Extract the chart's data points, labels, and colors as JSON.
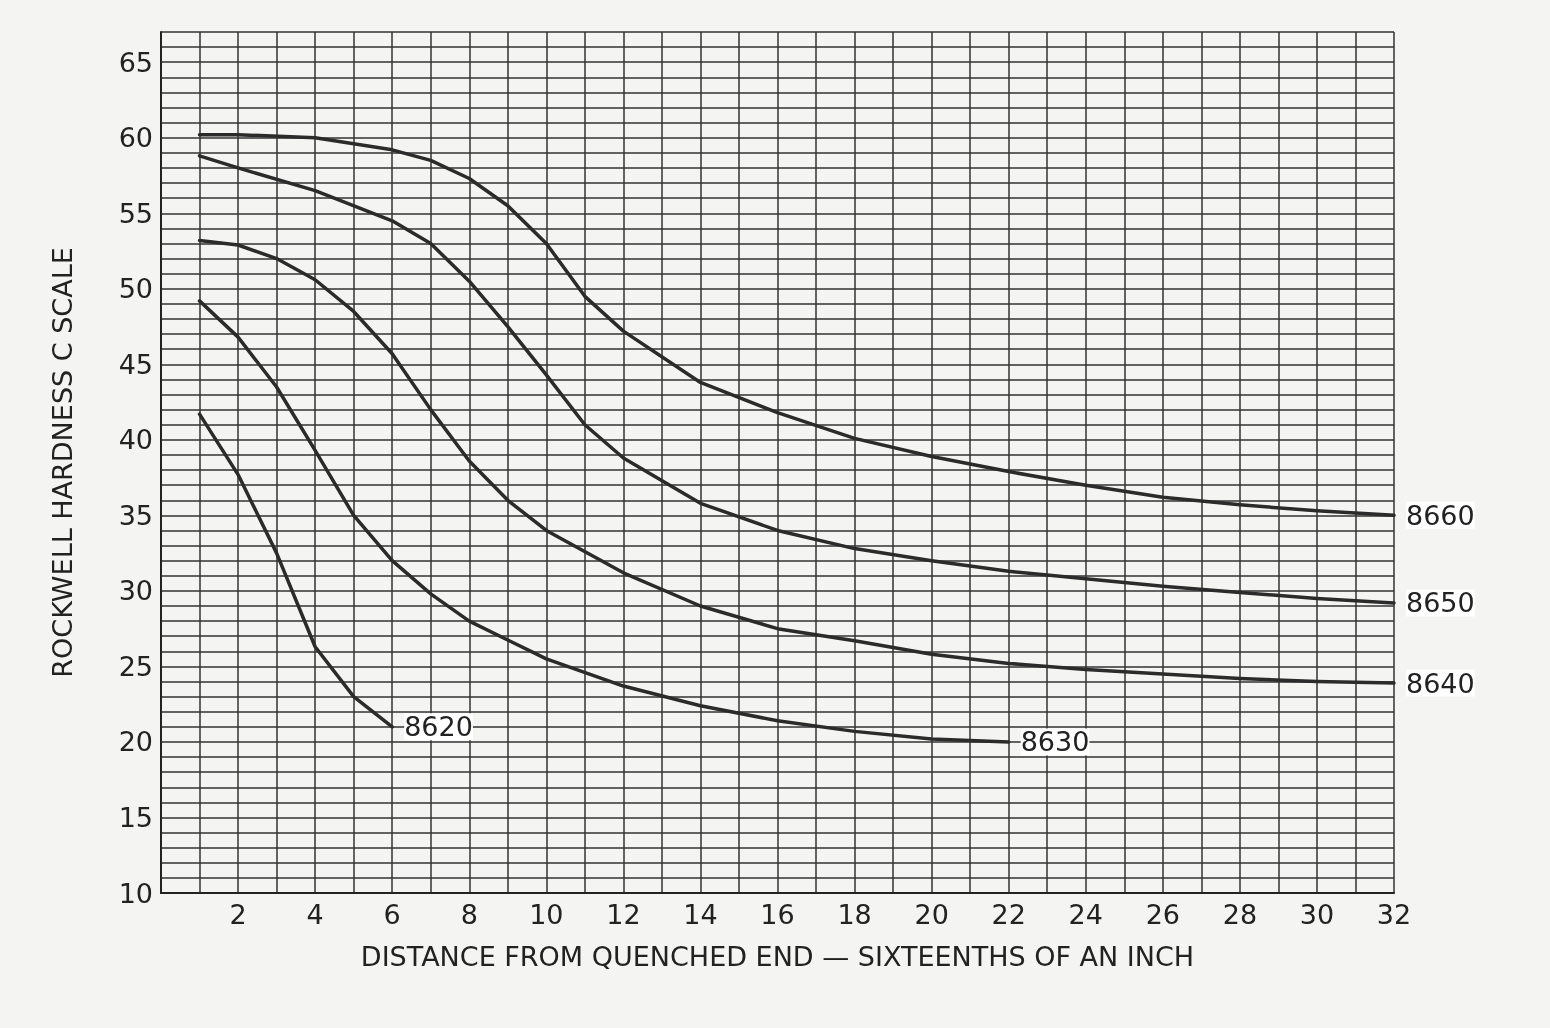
{
  "chart_data": {
    "type": "line",
    "xlabel": "DISTANCE FROM QUENCHED END — SIXTEENTHS OF AN INCH",
    "ylabel": "ROCKWELL HARDNESS C SCALE",
    "xlim": [
      0,
      32
    ],
    "ylim": [
      10,
      67
    ],
    "xticks": [
      {
        "value": 0,
        "label": null
      },
      {
        "value": 1,
        "label": null
      },
      2,
      {
        "value": 3,
        "label": null
      },
      4,
      {
        "value": 5,
        "label": null
      },
      6,
      {
        "value": 7,
        "label": null
      },
      8,
      {
        "value": 9,
        "label": null
      },
      10,
      {
        "value": 11,
        "label": null
      },
      12,
      {
        "value": 13,
        "label": null
      },
      14,
      {
        "value": 15,
        "label": null
      },
      16,
      {
        "value": 17,
        "label": null
      },
      18,
      {
        "value": 19,
        "label": null
      },
      20,
      {
        "value": 21,
        "label": null
      },
      22,
      {
        "value": 23,
        "label": null
      },
      24,
      {
        "value": 25,
        "label": null
      },
      26,
      {
        "value": 27,
        "label": null
      },
      28,
      {
        "value": 29,
        "label": null
      },
      30,
      {
        "value": 31,
        "label": null
      },
      32
    ],
    "yticks": [
      10,
      {
        "value": 11,
        "label": null
      },
      {
        "value": 12,
        "label": null
      },
      {
        "value": 13,
        "label": null
      },
      {
        "value": 14,
        "label": null
      },
      15,
      {
        "value": 16,
        "label": null
      },
      {
        "value": 17,
        "label": null
      },
      {
        "value": 18,
        "label": null
      },
      {
        "value": 19,
        "label": null
      },
      20,
      {
        "value": 21,
        "label": null
      },
      {
        "value": 22,
        "label": null
      },
      {
        "value": 23,
        "label": null
      },
      {
        "value": 24,
        "label": null
      },
      25,
      {
        "value": 26,
        "label": null
      },
      {
        "value": 27,
        "label": null
      },
      {
        "value": 28,
        "label": null
      },
      {
        "value": 29,
        "label": null
      },
      30,
      {
        "value": 31,
        "label": null
      },
      {
        "value": 32,
        "label": null
      },
      {
        "value": 33,
        "label": null
      },
      {
        "value": 34,
        "label": null
      },
      35,
      {
        "value": 36,
        "label": null
      },
      {
        "value": 37,
        "label": null
      },
      {
        "value": 38,
        "label": null
      },
      {
        "value": 39,
        "label": null
      },
      40,
      {
        "value": 41,
        "label": null
      },
      {
        "value": 42,
        "label": null
      },
      {
        "value": 43,
        "label": null
      },
      {
        "value": 44,
        "label": null
      },
      45,
      {
        "value": 46,
        "label": null
      },
      {
        "value": 47,
        "label": null
      },
      {
        "value": 48,
        "label": null
      },
      {
        "value": 49,
        "label": null
      },
      50,
      {
        "value": 51,
        "label": null
      },
      {
        "value": 52,
        "label": null
      },
      {
        "value": 53,
        "label": null
      },
      {
        "value": 54,
        "label": null
      },
      55,
      {
        "value": 56,
        "label": null
      },
      {
        "value": 57,
        "label": null
      },
      {
        "value": 58,
        "label": null
      },
      {
        "value": 59,
        "label": null
      },
      60,
      {
        "value": 61,
        "label": null
      },
      {
        "value": 62,
        "label": null
      },
      {
        "value": 63,
        "label": null
      },
      {
        "value": 64,
        "label": null
      },
      65,
      {
        "value": 66,
        "label": null
      },
      {
        "value": 67,
        "label": null
      }
    ],
    "grid": true,
    "legend": false,
    "series": [
      {
        "name": "8660",
        "color": "#2b2b2b",
        "x": [
          1,
          2,
          4,
          6,
          7,
          8,
          9,
          10,
          11,
          12,
          14,
          16,
          18,
          20,
          22,
          24,
          26,
          28,
          30,
          32
        ],
        "values": [
          60.2,
          60.2,
          60,
          59.2,
          58.5,
          57.3,
          55.5,
          53,
          49.5,
          47.2,
          43.8,
          41.8,
          40.1,
          38.9,
          37.9,
          37,
          36.2,
          35.7,
          35.3,
          35
        ]
      },
      {
        "name": "8650",
        "color": "#2b2b2b",
        "x": [
          1,
          2,
          4,
          6,
          7,
          8,
          9,
          10,
          11,
          12,
          14,
          16,
          18,
          20,
          22,
          24,
          26,
          28,
          30,
          32
        ],
        "values": [
          58.8,
          58,
          56.5,
          54.5,
          53,
          50.5,
          47.5,
          44.3,
          41,
          38.8,
          35.8,
          34,
          32.8,
          32,
          31.3,
          30.8,
          30.3,
          29.9,
          29.5,
          29.2
        ]
      },
      {
        "name": "8640",
        "color": "#2b2b2b",
        "x": [
          1,
          2,
          3,
          4,
          5,
          6,
          7,
          8,
          9,
          10,
          12,
          14,
          16,
          18,
          20,
          22,
          24,
          26,
          28,
          30,
          32
        ],
        "values": [
          53.2,
          52.9,
          52,
          50.6,
          48.5,
          45.7,
          42,
          38.6,
          36,
          34,
          31.2,
          29,
          27.5,
          26.7,
          25.8,
          25.2,
          24.8,
          24.5,
          24.2,
          24,
          23.9
        ]
      },
      {
        "name": "8630",
        "color": "#2b2b2b",
        "x": [
          1,
          2,
          3,
          4,
          5,
          6,
          7,
          8,
          10,
          12,
          14,
          16,
          18,
          20,
          22
        ],
        "values": [
          49.2,
          46.8,
          43.5,
          39.3,
          35,
          32,
          29.8,
          28,
          25.5,
          23.7,
          22.4,
          21.4,
          20.7,
          20.2,
          20
        ]
      },
      {
        "name": "8620",
        "color": "#2b2b2b",
        "x": [
          1,
          2,
          3,
          4,
          5,
          6
        ],
        "values": [
          41.7,
          37.7,
          32.5,
          26.3,
          23,
          21
        ]
      }
    ]
  }
}
